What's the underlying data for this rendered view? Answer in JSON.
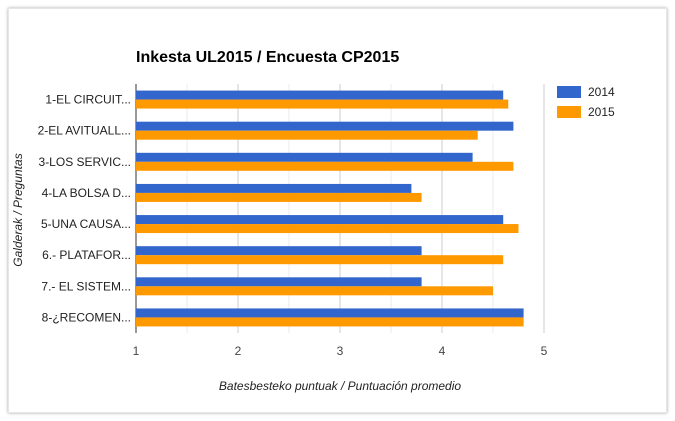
{
  "chart_data": {
    "type": "bar",
    "orientation": "horizontal",
    "title": "Inkesta UL2015 / Encuesta CP2015",
    "xlabel": "Batesbesteko puntuak / Puntuación promedio",
    "ylabel": "Galderak / Preguntas",
    "categories": [
      "1-EL CIRCUIT...",
      "2-EL AVITUALL...",
      "3-LOS SERVIC...",
      "4-LA BOLSA D...",
      "5-UNA CAUSA...",
      "6.- PLATAFOR...",
      "7.- EL SISTEM...",
      "8-¿RECOMEN..."
    ],
    "series": [
      {
        "name": "2014",
        "color": "#3366cc",
        "values": [
          4.6,
          4.7,
          4.3,
          3.7,
          4.6,
          3.8,
          3.8,
          4.8
        ]
      },
      {
        "name": "2015",
        "color": "#ff9900",
        "values": [
          4.65,
          4.35,
          4.7,
          3.8,
          4.75,
          4.6,
          4.5,
          4.8
        ]
      }
    ],
    "xlim": [
      1,
      5
    ],
    "xticks": [
      "1",
      "2",
      "3",
      "4",
      "5"
    ],
    "grid": true,
    "legend_position": "right"
  }
}
